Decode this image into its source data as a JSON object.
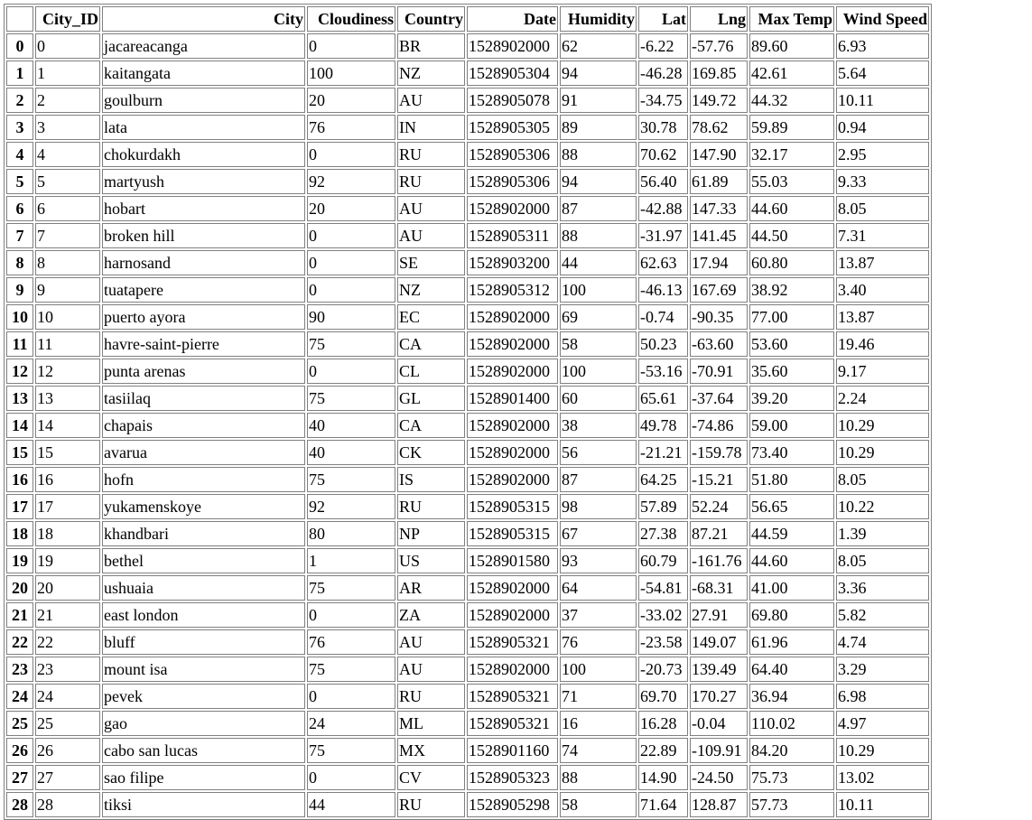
{
  "table": {
    "columns": [
      "",
      "City_ID",
      "City",
      "Cloudiness",
      "Country",
      "Date",
      "Humidity",
      "Lat",
      "Lng",
      "Max Temp",
      "Wind Speed"
    ],
    "rows": [
      [
        "0",
        "0",
        "jacareacanga",
        "0",
        "BR",
        "1528902000",
        "62",
        "-6.22",
        "-57.76",
        "89.60",
        "6.93"
      ],
      [
        "1",
        "1",
        "kaitangata",
        "100",
        "NZ",
        "1528905304",
        "94",
        "-46.28",
        "169.85",
        "42.61",
        "5.64"
      ],
      [
        "2",
        "2",
        "goulburn",
        "20",
        "AU",
        "1528905078",
        "91",
        "-34.75",
        "149.72",
        "44.32",
        "10.11"
      ],
      [
        "3",
        "3",
        "lata",
        "76",
        "IN",
        "1528905305",
        "89",
        "30.78",
        "78.62",
        "59.89",
        "0.94"
      ],
      [
        "4",
        "4",
        "chokurdakh",
        "0",
        "RU",
        "1528905306",
        "88",
        "70.62",
        "147.90",
        "32.17",
        "2.95"
      ],
      [
        "5",
        "5",
        "martyush",
        "92",
        "RU",
        "1528905306",
        "94",
        "56.40",
        "61.89",
        "55.03",
        "9.33"
      ],
      [
        "6",
        "6",
        "hobart",
        "20",
        "AU",
        "1528902000",
        "87",
        "-42.88",
        "147.33",
        "44.60",
        "8.05"
      ],
      [
        "7",
        "7",
        "broken hill",
        "0",
        "AU",
        "1528905311",
        "88",
        "-31.97",
        "141.45",
        "44.50",
        "7.31"
      ],
      [
        "8",
        "8",
        "harnosand",
        "0",
        "SE",
        "1528903200",
        "44",
        "62.63",
        "17.94",
        "60.80",
        "13.87"
      ],
      [
        "9",
        "9",
        "tuatapere",
        "0",
        "NZ",
        "1528905312",
        "100",
        "-46.13",
        "167.69",
        "38.92",
        "3.40"
      ],
      [
        "10",
        "10",
        "puerto ayora",
        "90",
        "EC",
        "1528902000",
        "69",
        "-0.74",
        "-90.35",
        "77.00",
        "13.87"
      ],
      [
        "11",
        "11",
        "havre-saint-pierre",
        "75",
        "CA",
        "1528902000",
        "58",
        "50.23",
        "-63.60",
        "53.60",
        "19.46"
      ],
      [
        "12",
        "12",
        "punta arenas",
        "0",
        "CL",
        "1528902000",
        "100",
        "-53.16",
        "-70.91",
        "35.60",
        "9.17"
      ],
      [
        "13",
        "13",
        "tasiilaq",
        "75",
        "GL",
        "1528901400",
        "60",
        "65.61",
        "-37.64",
        "39.20",
        "2.24"
      ],
      [
        "14",
        "14",
        "chapais",
        "40",
        "CA",
        "1528902000",
        "38",
        "49.78",
        "-74.86",
        "59.00",
        "10.29"
      ],
      [
        "15",
        "15",
        "avarua",
        "40",
        "CK",
        "1528902000",
        "56",
        "-21.21",
        "-159.78",
        "73.40",
        "10.29"
      ],
      [
        "16",
        "16",
        "hofn",
        "75",
        "IS",
        "1528902000",
        "87",
        "64.25",
        "-15.21",
        "51.80",
        "8.05"
      ],
      [
        "17",
        "17",
        "yukamenskoye",
        "92",
        "RU",
        "1528905315",
        "98",
        "57.89",
        "52.24",
        "56.65",
        "10.22"
      ],
      [
        "18",
        "18",
        "khandbari",
        "80",
        "NP",
        "1528905315",
        "67",
        "27.38",
        "87.21",
        "44.59",
        "1.39"
      ],
      [
        "19",
        "19",
        "bethel",
        "1",
        "US",
        "1528901580",
        "93",
        "60.79",
        "-161.76",
        "44.60",
        "8.05"
      ],
      [
        "20",
        "20",
        "ushuaia",
        "75",
        "AR",
        "1528902000",
        "64",
        "-54.81",
        "-68.31",
        "41.00",
        "3.36"
      ],
      [
        "21",
        "21",
        "east london",
        "0",
        "ZA",
        "1528902000",
        "37",
        "-33.02",
        "27.91",
        "69.80",
        "5.82"
      ],
      [
        "22",
        "22",
        "bluff",
        "76",
        "AU",
        "1528905321",
        "76",
        "-23.58",
        "149.07",
        "61.96",
        "4.74"
      ],
      [
        "23",
        "23",
        "mount isa",
        "75",
        "AU",
        "1528902000",
        "100",
        "-20.73",
        "139.49",
        "64.40",
        "3.29"
      ],
      [
        "24",
        "24",
        "pevek",
        "0",
        "RU",
        "1528905321",
        "71",
        "69.70",
        "170.27",
        "36.94",
        "6.98"
      ],
      [
        "25",
        "25",
        "gao",
        "24",
        "ML",
        "1528905321",
        "16",
        "16.28",
        "-0.04",
        "110.02",
        "4.97"
      ],
      [
        "26",
        "26",
        "cabo san lucas",
        "75",
        "MX",
        "1528901160",
        "74",
        "22.89",
        "-109.91",
        "84.20",
        "10.29"
      ],
      [
        "27",
        "27",
        "sao filipe",
        "0",
        "CV",
        "1528905323",
        "88",
        "14.90",
        "-24.50",
        "75.73",
        "13.02"
      ],
      [
        "28",
        "28",
        "tiksi",
        "44",
        "RU",
        "1528905298",
        "58",
        "71.64",
        "128.87",
        "57.73",
        "10.11"
      ]
    ]
  }
}
